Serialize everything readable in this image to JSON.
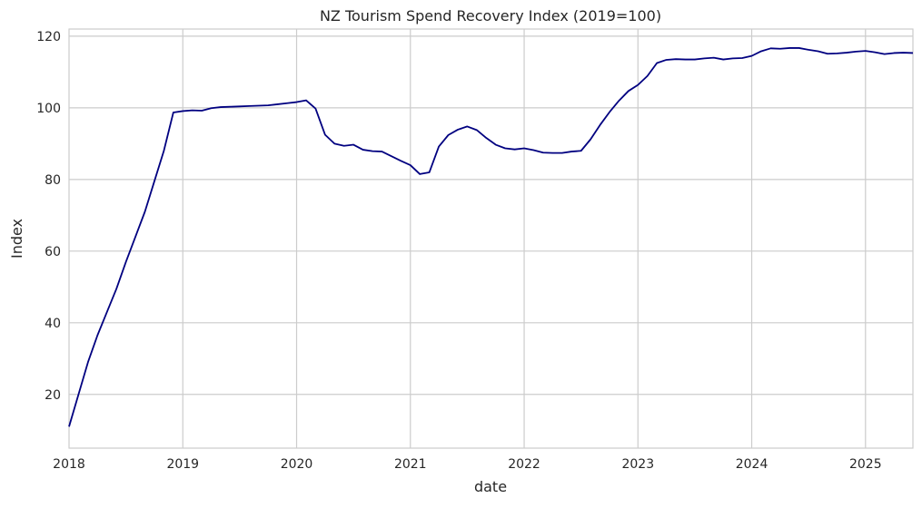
{
  "chart_data": {
    "type": "line",
    "title": "NZ Tourism Spend Recovery Index (2019=100)",
    "xlabel": "date",
    "ylabel": "Index",
    "xlim": [
      "2018-01",
      "2025-06"
    ],
    "ylim": [
      5,
      122
    ],
    "x_ticks": [
      "2018",
      "2019",
      "2020",
      "2021",
      "2022",
      "2023",
      "2024",
      "2025"
    ],
    "y_ticks": [
      20,
      40,
      60,
      80,
      100,
      120
    ],
    "grid": true,
    "line_color": "#000080",
    "series": [
      {
        "x": [
          "2018-01",
          "2018-02",
          "2018-03",
          "2018-04",
          "2018-05",
          "2018-06",
          "2018-07",
          "2018-08",
          "2018-09",
          "2018-10",
          "2018-11",
          "2018-12",
          "2019-01",
          "2019-02",
          "2019-03",
          "2019-04",
          "2019-05",
          "2019-06",
          "2019-07",
          "2019-08",
          "2019-09",
          "2019-10",
          "2019-11",
          "2019-12",
          "2020-01",
          "2020-02",
          "2020-03",
          "2020-04",
          "2020-05",
          "2020-06",
          "2020-07",
          "2020-08",
          "2020-09",
          "2020-10",
          "2020-11",
          "2020-12",
          "2021-01",
          "2021-02",
          "2021-03",
          "2021-04",
          "2021-05",
          "2021-06",
          "2021-07",
          "2021-08",
          "2021-09",
          "2021-10",
          "2021-11",
          "2021-12",
          "2022-01",
          "2022-02",
          "2022-03",
          "2022-04",
          "2022-05",
          "2022-06",
          "2022-07",
          "2022-08",
          "2022-09",
          "2022-10",
          "2022-11",
          "2022-12",
          "2023-01",
          "2023-02",
          "2023-03",
          "2023-04",
          "2023-05",
          "2023-06",
          "2023-07",
          "2023-08",
          "2023-09",
          "2023-10",
          "2023-11",
          "2023-12",
          "2024-01",
          "2024-02",
          "2024-03",
          "2024-04",
          "2024-05",
          "2024-06",
          "2024-07",
          "2024-08",
          "2024-09",
          "2024-10",
          "2024-11",
          "2024-12",
          "2025-01",
          "2025-02",
          "2025-03",
          "2025-04",
          "2025-05",
          "2025-06"
        ],
        "values": [
          11,
          20,
          29,
          36.5,
          43,
          49.5,
          57,
          64,
          71,
          79.5,
          88,
          98.7,
          99.1,
          99.3,
          99.2,
          99.9,
          100.2,
          100.3,
          100.4,
          100.5,
          100.6,
          100.7,
          101.0,
          101.3,
          101.6,
          102.1,
          99.8,
          92.5,
          90.0,
          89.4,
          89.7,
          88.3,
          87.9,
          87.8,
          86.5,
          85.2,
          84.0,
          81.5,
          82.0,
          89.2,
          92.4,
          93.9,
          94.8,
          93.8,
          91.6,
          89.7,
          88.7,
          88.4,
          88.7,
          88.2,
          87.5,
          87.4,
          87.4,
          87.8,
          88.0,
          91.2,
          95.2,
          98.8,
          102.0,
          104.7,
          106.4,
          108.9,
          112.5,
          113.4,
          113.6,
          113.5,
          113.5,
          113.8,
          114.0,
          113.5,
          113.8,
          113.9,
          114.5,
          115.8,
          116.6,
          116.5,
          116.7,
          116.7,
          116.2,
          115.8,
          115.1,
          115.2,
          115.4,
          115.7,
          115.9,
          115.5,
          115.0,
          115.3,
          115.4,
          115.3
        ]
      }
    ]
  }
}
